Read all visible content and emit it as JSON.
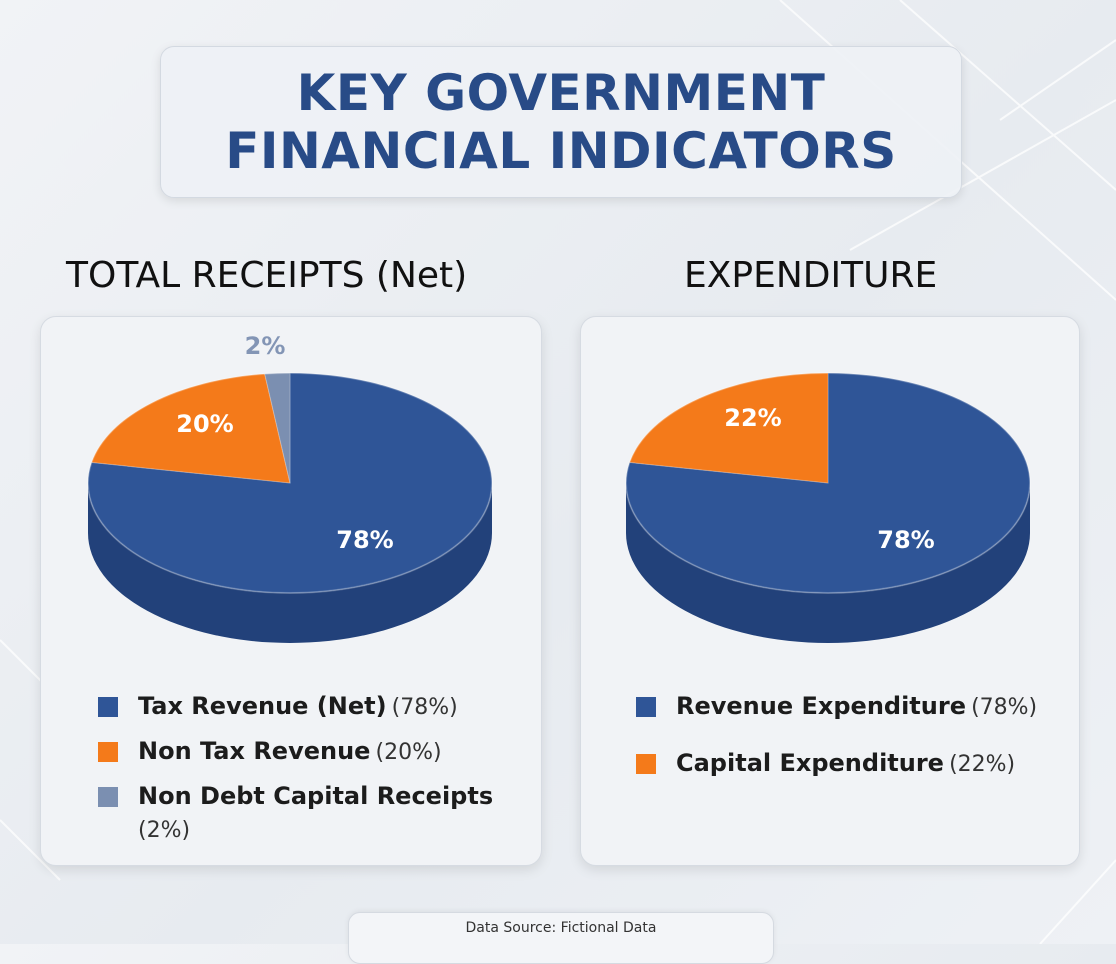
{
  "title": {
    "line1": "KEY GOVERNMENT",
    "line2": "FINANCIAL INDICATORS"
  },
  "source": "Data Source: Fictional Data",
  "colors": {
    "title": "#284b87",
    "blue_top": "#2f5597",
    "blue_side": "#22417a",
    "orange_top": "#f47a1a",
    "orange_side": "#c95d0c",
    "gray_top": "#7b8fb1",
    "gray_side": "#5d7092"
  },
  "chart_data": [
    {
      "type": "pie",
      "title": "TOTAL RECEIPTS (Net)",
      "slices": [
        {
          "label": "Tax Revenue (Net)",
          "pct_text": "(78%)",
          "value": 78,
          "data_label": "78%",
          "color": "#2f5597"
        },
        {
          "label": "Non Tax Revenue",
          "pct_text": "(20%)",
          "value": 20,
          "data_label": "20%",
          "color": "#f47a1a"
        },
        {
          "label": "Non Debt Capital Receipts",
          "pct_text": "(2%)",
          "value": 2,
          "data_label": "2%",
          "color": "#7b8fb1"
        }
      ]
    },
    {
      "type": "pie",
      "title": "EXPENDITURE",
      "slices": [
        {
          "label": "Revenue Expenditure",
          "pct_text": "(78%)",
          "value": 78,
          "data_label": "78%",
          "color": "#2f5597"
        },
        {
          "label": "Capital Expenditure",
          "pct_text": "(22%)",
          "value": 22,
          "data_label": "22%",
          "color": "#f47a1a"
        }
      ]
    }
  ]
}
